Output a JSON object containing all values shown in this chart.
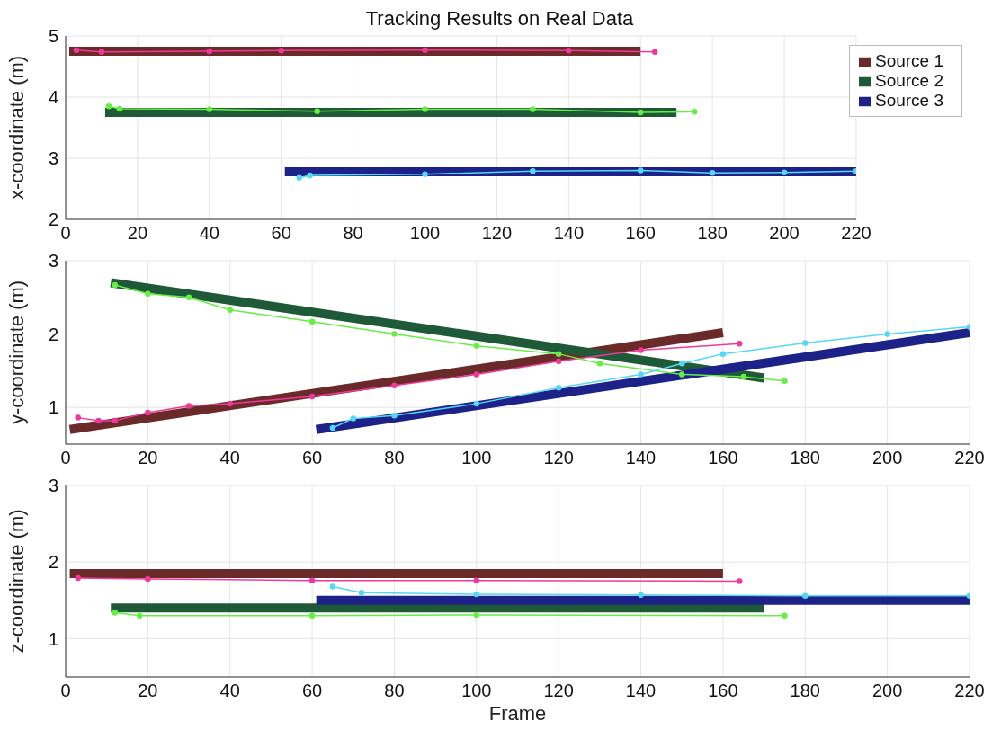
{
  "chart_data": [
    {
      "type": "line",
      "title": "Tracking Results on Real Data",
      "ylabel": "x-coordinate (m)",
      "xlim": [
        0,
        220
      ],
      "xticks": [
        0,
        20,
        40,
        60,
        80,
        100,
        120,
        140,
        160,
        180,
        200,
        220
      ],
      "ylim": [
        2,
        5
      ],
      "yticks": [
        2,
        3,
        4,
        5
      ],
      "grid": true,
      "legend": "top right",
      "series": [
        {
          "name": "Source 1",
          "color": "#6b2a2a",
          "x": [
            1,
            160
          ],
          "values": [
            4.75,
            4.75
          ]
        },
        {
          "name": "Source 2",
          "color": "#1f5a38",
          "x": [
            11,
            170
          ],
          "values": [
            3.75,
            3.75
          ]
        },
        {
          "name": "Source 3",
          "color": "#1c2288",
          "x": [
            61,
            220
          ],
          "values": [
            2.78,
            2.78
          ]
        },
        {
          "color": "#f0389a",
          "marker": "circle",
          "x": [
            3,
            10,
            40,
            60,
            100,
            140,
            164
          ],
          "values": [
            4.77,
            4.74,
            4.75,
            4.76,
            4.77,
            4.76,
            4.74
          ]
        },
        {
          "color": "#66ee44",
          "marker": "circle",
          "x": [
            12,
            15,
            40,
            70,
            100,
            130,
            160,
            175
          ],
          "values": [
            3.85,
            3.81,
            3.8,
            3.77,
            3.8,
            3.8,
            3.75,
            3.76
          ]
        },
        {
          "color": "#55d8f5",
          "marker": "circle",
          "x": [
            65,
            68,
            100,
            130,
            160,
            180,
            200,
            220
          ],
          "values": [
            2.68,
            2.72,
            2.74,
            2.79,
            2.8,
            2.76,
            2.77,
            2.79
          ]
        }
      ]
    },
    {
      "type": "line",
      "ylabel": "y-coordinate (m)",
      "xlim": [
        0,
        220
      ],
      "xticks": [
        0,
        20,
        40,
        60,
        80,
        100,
        120,
        140,
        160,
        180,
        200,
        220
      ],
      "ylim": [
        0.5,
        3
      ],
      "yticks": [
        1,
        2,
        3
      ],
      "grid": true,
      "series": [
        {
          "color": "#6b2a2a",
          "x": [
            1,
            160
          ],
          "values": [
            0.7,
            2.02
          ]
        },
        {
          "color": "#1f5a38",
          "x": [
            11,
            170
          ],
          "values": [
            2.7,
            1.4
          ]
        },
        {
          "color": "#1c2288",
          "x": [
            61,
            220
          ],
          "values": [
            0.7,
            2.02
          ]
        },
        {
          "color": "#f0389a",
          "marker": "circle",
          "x": [
            3,
            8,
            12,
            20,
            30,
            40,
            60,
            80,
            100,
            120,
            140,
            164
          ],
          "values": [
            0.86,
            0.82,
            0.82,
            0.93,
            1.02,
            1.05,
            1.15,
            1.3,
            1.45,
            1.63,
            1.78,
            1.87
          ]
        },
        {
          "color": "#66ee44",
          "marker": "circle",
          "x": [
            12,
            20,
            30,
            40,
            60,
            80,
            100,
            120,
            130,
            150,
            165,
            175
          ],
          "values": [
            2.67,
            2.55,
            2.5,
            2.33,
            2.17,
            2.0,
            1.84,
            1.73,
            1.6,
            1.45,
            1.42,
            1.36
          ]
        },
        {
          "color": "#55d8f5",
          "marker": "circle",
          "x": [
            65,
            70,
            80,
            100,
            120,
            140,
            150,
            160,
            180,
            200,
            220
          ],
          "values": [
            0.72,
            0.85,
            0.89,
            1.05,
            1.27,
            1.45,
            1.6,
            1.73,
            1.88,
            2.0,
            2.1
          ]
        }
      ]
    },
    {
      "type": "line",
      "ylabel": "z-coordinate (m)",
      "xlabel": "Frame",
      "xlim": [
        0,
        220
      ],
      "xticks": [
        0,
        20,
        40,
        60,
        80,
        100,
        120,
        140,
        160,
        180,
        200,
        220
      ],
      "ylim": [
        0.5,
        3
      ],
      "yticks": [
        1,
        2,
        3
      ],
      "grid": true,
      "series": [
        {
          "color": "#6b2a2a",
          "x": [
            1,
            160
          ],
          "values": [
            1.85,
            1.85
          ]
        },
        {
          "color": "#1f5a38",
          "x": [
            11,
            170
          ],
          "values": [
            1.4,
            1.4
          ]
        },
        {
          "color": "#1c2288",
          "x": [
            61,
            220
          ],
          "values": [
            1.5,
            1.5
          ]
        },
        {
          "color": "#f0389a",
          "marker": "circle",
          "x": [
            3,
            20,
            60,
            100,
            164
          ],
          "values": [
            1.79,
            1.78,
            1.76,
            1.76,
            1.75
          ]
        },
        {
          "color": "#66ee44",
          "marker": "circle",
          "x": [
            12,
            18,
            60,
            100,
            175
          ],
          "values": [
            1.34,
            1.3,
            1.3,
            1.31,
            1.3
          ]
        },
        {
          "color": "#55d8f5",
          "marker": "circle",
          "x": [
            65,
            72,
            100,
            140,
            180,
            220
          ],
          "values": [
            1.68,
            1.6,
            1.58,
            1.57,
            1.56,
            1.56
          ]
        }
      ]
    }
  ]
}
